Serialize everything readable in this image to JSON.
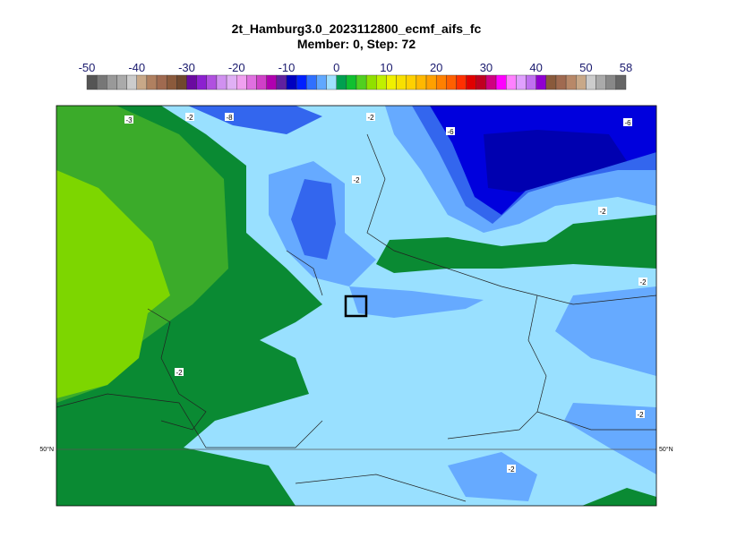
{
  "header": {
    "title": "2t_Hamburg3.0_2023112800_ecmf_aifs_fc",
    "subtitle": "Member: 0, Step: 72"
  },
  "colorbar": {
    "labels": [
      -50,
      -40,
      -30,
      -20,
      -10,
      0,
      10,
      20,
      30,
      40,
      50,
      58
    ],
    "colors": [
      "#555555",
      "#777777",
      "#999999",
      "#aaaaaa",
      "#cccccc",
      "#c8a888",
      "#b08060",
      "#a06a50",
      "#8b5a3c",
      "#70482e",
      "#6a0aa0",
      "#8c20d0",
      "#b050e0",
      "#d090f0",
      "#e0b0f5",
      "#f0a0f0",
      "#e070e0",
      "#d040c8",
      "#b000b0",
      "#6020a0",
      "#0000c0",
      "#0020ff",
      "#3070ff",
      "#60a8ff",
      "#a0e0ff",
      "#00a050",
      "#10c030",
      "#50d020",
      "#90e000",
      "#c0f000",
      "#f0f000",
      "#f8e000",
      "#ffd000",
      "#ffb800",
      "#ffa000",
      "#ff8000",
      "#ff6000",
      "#ff3000",
      "#e00000",
      "#c00020",
      "#d00080",
      "#ff00ff",
      "#ff80ff",
      "#e0a0ff",
      "#c070f0",
      "#9000d0",
      "#8a5a3c",
      "#a06a50",
      "#b88868",
      "#c8a888",
      "#cccccc",
      "#aaaaaa",
      "#888888",
      "#666666"
    ]
  },
  "map": {
    "contour_labels": [
      "-3",
      "-2",
      "-8",
      "-2",
      "-6",
      "-6",
      "-2",
      "-2",
      "-2",
      "-2",
      "-2",
      "-2"
    ],
    "lat_left": "50°N",
    "lat_right": "50°N"
  }
}
